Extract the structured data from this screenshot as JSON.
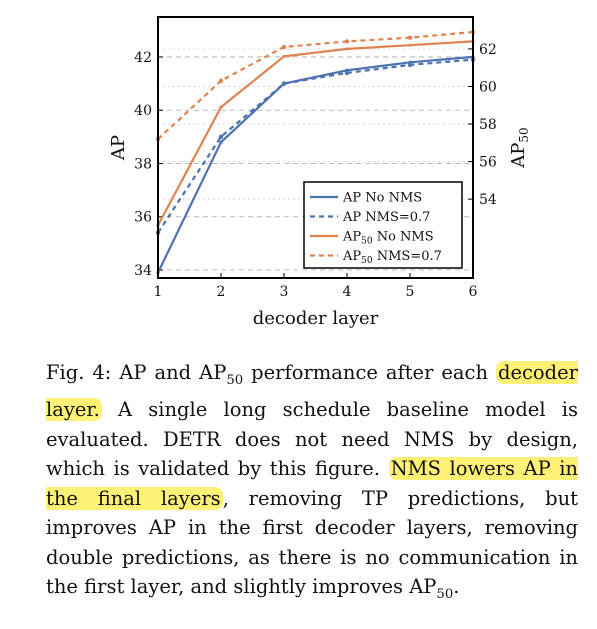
{
  "chart_data": {
    "type": "line",
    "x": [
      1,
      2,
      3,
      4,
      5,
      6
    ],
    "xlabel": "decoder layer",
    "ylabel_left": "AP",
    "ylabel_right": "AP",
    "ylabel_right_subscript": "50",
    "xlim": [
      1,
      6
    ],
    "ylim_left": [
      33.7,
      43.5
    ],
    "ylim_right": [
      49.8,
      63.7
    ],
    "left_ticks": [
      34,
      36,
      38,
      40,
      42
    ],
    "right_ticks": [
      54,
      56,
      58,
      60,
      62
    ],
    "x_ticks": [
      1,
      2,
      3,
      4,
      5,
      6
    ],
    "grid": "dashed",
    "legend_placement": "bottom-right",
    "series": [
      {
        "name": "AP No NMS",
        "axis": "left",
        "color": "#4c72b0",
        "dash": false,
        "values": [
          33.9,
          38.8,
          41.0,
          41.5,
          41.8,
          42.0
        ]
      },
      {
        "name": "AP NMS=0.7",
        "axis": "left",
        "color": "#4c72b0",
        "dash": true,
        "values": [
          35.4,
          39.0,
          41.0,
          41.4,
          41.7,
          41.9
        ]
      },
      {
        "name": "AP No NMS",
        "name_sub": "50",
        "axis": "right",
        "color": "#dd8452",
        "dash": false,
        "values": [
          52.6,
          58.9,
          61.6,
          62.0,
          62.2,
          62.4
        ]
      },
      {
        "name": "AP NMS=0.7",
        "name_sub": "50",
        "axis": "right",
        "color": "#dd8452",
        "dash": true,
        "values": [
          57.2,
          60.3,
          62.1,
          62.4,
          62.6,
          62.9
        ]
      }
    ]
  },
  "caption": {
    "fig_label": "Fig. 4:",
    "t1": " AP and AP",
    "t1_sub": "50",
    "t2": " performance after each ",
    "hl1": "decoder layer.",
    "t3": " A single long schedule baseline model is evaluated. DETR does not need NMS by design, which is validated by this figure. ",
    "hl2": "NMS lowers AP in the final layers",
    "t4": ", removing TP predictions, but improves AP in the first decoder layers, removing double predictions, as there is no communication in the first layer, and slightly improves AP",
    "t4_sub": "50",
    "t5": "."
  }
}
